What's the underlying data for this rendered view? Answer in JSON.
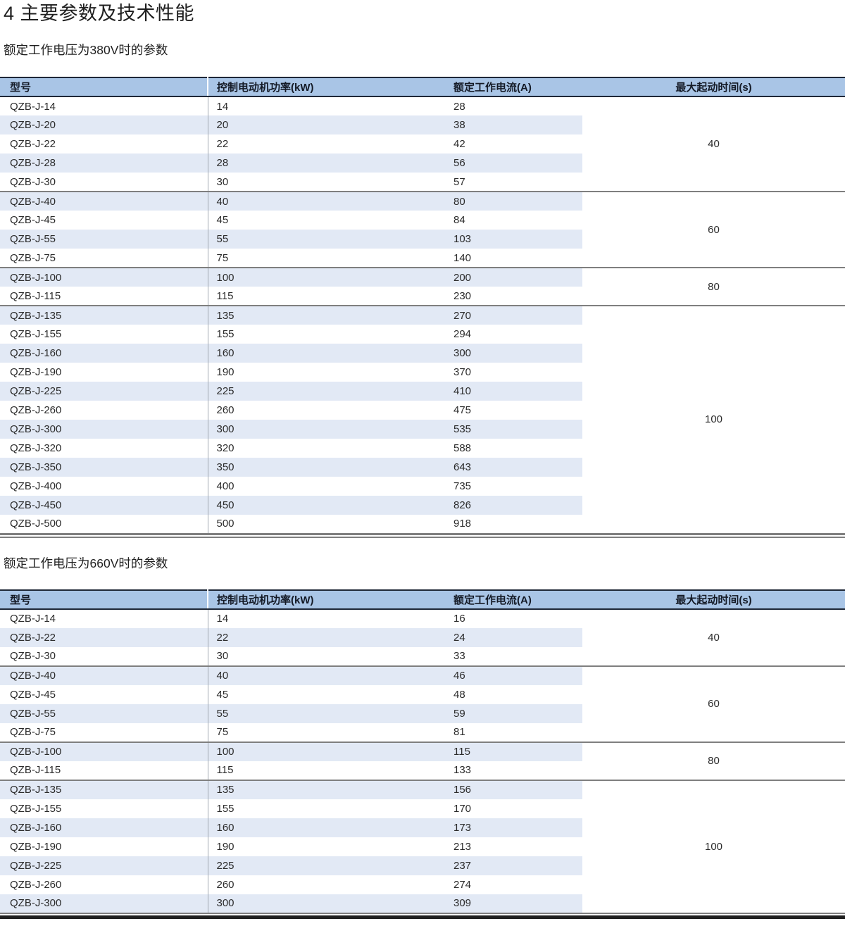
{
  "page": {
    "title": "4 主要参数及技术性能"
  },
  "colors": {
    "header_bg": "#A9C5E6",
    "stripe_bg": "#E2E9F5",
    "dark_border": "#1E2737",
    "group_line": "#7F7F7F",
    "text": "#2B2B2B"
  },
  "tables": [
    {
      "id": "380v",
      "subtitle": "额定工作电压为380V时的参数",
      "headers": [
        "型号",
        "控制电动机功率(kW)",
        "额定工作电流(A)",
        "最大起动时间(s)"
      ],
      "groups": [
        {
          "max_start_time": "40",
          "rows": [
            [
              "QZB-J-14",
              "14",
              "28"
            ],
            [
              "QZB-J-20",
              "20",
              "38"
            ],
            [
              "QZB-J-22",
              "22",
              "42"
            ],
            [
              "QZB-J-28",
              "28",
              "56"
            ],
            [
              "QZB-J-30",
              "30",
              "57"
            ]
          ]
        },
        {
          "max_start_time": "60",
          "rows": [
            [
              "QZB-J-40",
              "40",
              "80"
            ],
            [
              "QZB-J-45",
              "45",
              "84"
            ],
            [
              "QZB-J-55",
              "55",
              "103"
            ],
            [
              "QZB-J-75",
              "75",
              "140"
            ]
          ]
        },
        {
          "max_start_time": "80",
          "rows": [
            [
              "QZB-J-100",
              "100",
              "200"
            ],
            [
              "QZB-J-115",
              "115",
              "230"
            ]
          ]
        },
        {
          "max_start_time": "100",
          "rows": [
            [
              "QZB-J-135",
              "135",
              "270"
            ],
            [
              "QZB-J-155",
              "155",
              "294"
            ],
            [
              "QZB-J-160",
              "160",
              "300"
            ],
            [
              "QZB-J-190",
              "190",
              "370"
            ],
            [
              "QZB-J-225",
              "225",
              "410"
            ],
            [
              "QZB-J-260",
              "260",
              "475"
            ],
            [
              "QZB-J-300",
              "300",
              "535"
            ],
            [
              "QZB-J-320",
              "320",
              "588"
            ],
            [
              "QZB-J-350",
              "350",
              "643"
            ],
            [
              "QZB-J-400",
              "400",
              "735"
            ],
            [
              "QZB-J-450",
              "450",
              "826"
            ],
            [
              "QZB-J-500",
              "500",
              "918"
            ]
          ]
        }
      ]
    },
    {
      "id": "660v",
      "subtitle": "额定工作电压为660V时的参数",
      "headers": [
        "型号",
        "控制电动机功率(kW)",
        "额定工作电流(A)",
        "最大起动时间(s)"
      ],
      "groups": [
        {
          "max_start_time": "40",
          "rows": [
            [
              "QZB-J-14",
              "14",
              "16"
            ],
            [
              "QZB-J-22",
              "22",
              "24"
            ],
            [
              "QZB-J-30",
              "30",
              "33"
            ]
          ]
        },
        {
          "max_start_time": "60",
          "rows": [
            [
              "QZB-J-40",
              "40",
              "46"
            ],
            [
              "QZB-J-45",
              "45",
              "48"
            ],
            [
              "QZB-J-55",
              "55",
              "59"
            ],
            [
              "QZB-J-75",
              "75",
              "81"
            ]
          ]
        },
        {
          "max_start_time": "80",
          "rows": [
            [
              "QZB-J-100",
              "100",
              "115"
            ],
            [
              "QZB-J-115",
              "115",
              "133"
            ]
          ]
        },
        {
          "max_start_time": "100",
          "rows": [
            [
              "QZB-J-135",
              "135",
              "156"
            ],
            [
              "QZB-J-155",
              "155",
              "170"
            ],
            [
              "QZB-J-160",
              "160",
              "173"
            ],
            [
              "QZB-J-190",
              "190",
              "213"
            ],
            [
              "QZB-J-225",
              "225",
              "237"
            ],
            [
              "QZB-J-260",
              "260",
              "274"
            ],
            [
              "QZB-J-300",
              "300",
              "309"
            ]
          ]
        }
      ]
    }
  ]
}
